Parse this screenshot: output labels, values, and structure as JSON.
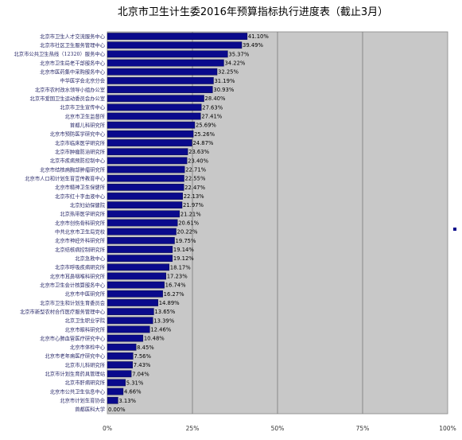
{
  "chart_data": {
    "type": "bar",
    "orientation": "horizontal",
    "title": "北京市卫生计生委2016年预算指标执行进度表（截止3月）",
    "categories": [
      "北京市卫生人才交流服务中心",
      "北京市社区卫生服务管理中心",
      "北京市公共卫生热线（12320）服务中心",
      "北京市卫生局老干部服务中心",
      "北京市医药集中采购服务中心",
      "中华医学会北京分会",
      "北京市农村改水领导小组办公室",
      "北京市爱国卫生运动委员会办公室",
      "北京市卫生宣传中心",
      "北京市卫生监督所",
      "首都儿科研究所",
      "北京市预防医学研究中心",
      "北京市临床医学研究所",
      "北京市肿瘤防治研究所",
      "北京市疾病预防控制中心",
      "北京市结核病胸部肿瘤研究所",
      "北京市人口和计划生育宣传教育中心",
      "北京市精神卫生保健所",
      "北京市红十字血液中心",
      "北京妇幼保健院",
      "北京热带医学研究所",
      "北京市创伤骨科研究所",
      "中共北京市卫生局党校",
      "北京市神经外科研究所",
      "北京结核病控制研究所",
      "北京急救中心",
      "北京市呼吸疾病研究所",
      "北京市耳鼻咽喉科研究所",
      "北京市卫生会计核算服务中心",
      "北京市中医研究所",
      "北京市卫生和计划生育委员会",
      "北京市新型农村合作医疗服务管理中心",
      "北京卫生职业学院",
      "北京市眼科研究所",
      "北京市心肺血管医疗研究中心",
      "北京市体检中心",
      "北京市老年病医疗研究中心",
      "北京市儿科研究所",
      "北京市计划生育药具管理站",
      "北京市肝病研究所",
      "北京市公共卫生信息中心",
      "北京市计划生育协会",
      "首都医科大学"
    ],
    "value_labels": [
      "41.10%",
      "39.49%",
      "35.37%",
      "34.22%",
      "32.25%",
      "31.19%",
      "30.93%",
      "28.40%",
      "27.63%",
      "27.41%",
      "25.69%",
      "25.26%",
      "24.87%",
      "23.63%",
      "23.40%",
      "22.71%",
      "22.55%",
      "22.47%",
      "22.13%",
      "21.97%",
      "21.21%",
      "20.61%",
      "20.22%",
      "19.75%",
      "19.14%",
      "19.12%",
      "18.17%",
      "17.23%",
      "16.74%",
      "16.27%",
      "14.89%",
      "13.65%",
      "13.39%",
      "12.46%",
      "10.48%",
      "8.45%",
      "7.56%",
      "7.43%",
      "7.04%",
      "5.31%",
      "4.66%",
      "3.13%",
      "0.00%"
    ],
    "values": [
      41.1,
      39.49,
      35.37,
      34.22,
      32.25,
      31.19,
      30.93,
      28.4,
      27.63,
      27.41,
      25.69,
      25.26,
      24.87,
      23.63,
      23.4,
      22.71,
      22.55,
      22.47,
      22.13,
      21.97,
      21.21,
      20.61,
      20.22,
      19.75,
      19.14,
      19.12,
      18.17,
      17.23,
      16.74,
      16.27,
      14.89,
      13.65,
      13.39,
      12.46,
      10.48,
      8.45,
      7.56,
      7.43,
      7.04,
      5.31,
      4.66,
      3.13,
      0.0
    ],
    "xlim": [
      0,
      100
    ],
    "x_ticks": [
      "0%",
      "25%",
      "50%",
      "75%",
      "100%"
    ],
    "grid": true,
    "colors": {
      "bar_fill": "#0a0a8c",
      "bar_edge": "#000033",
      "plot_background": "#c8c8c8",
      "gridline": "#777777",
      "legend_marker": "#0a0a8c"
    }
  }
}
